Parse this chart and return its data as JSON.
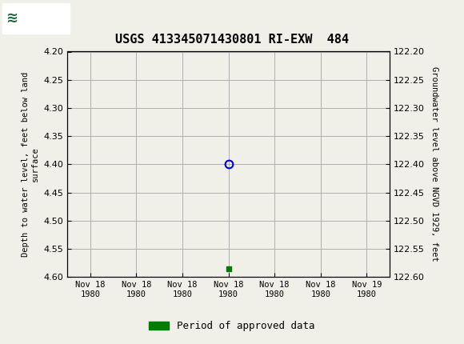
{
  "title": "USGS 413345071430801 RI-EXW  484",
  "ylabel_left": "Depth to water level, feet below land\nsurface",
  "ylabel_right": "Groundwater level above NGVD 1929, feet",
  "ylim_left": [
    4.2,
    4.6
  ],
  "ylim_right": [
    122.2,
    122.6
  ],
  "yticks_left": [
    4.2,
    4.25,
    4.3,
    4.35,
    4.4,
    4.45,
    4.5,
    4.55,
    4.6
  ],
  "yticks_right": [
    122.6,
    122.55,
    122.5,
    122.45,
    122.4,
    122.35,
    122.3,
    122.25,
    122.2
  ],
  "data_point_x": 3.0,
  "data_point_y": 4.4,
  "bar_x": 3.0,
  "bar_y": 4.585,
  "bar_color": "#007d00",
  "circle_color": "#0000cc",
  "header_color": "#1a6b3c",
  "background_color": "#f0f0e8",
  "plot_bg_color": "#f0f0e8",
  "grid_color": "#b0b0b0",
  "font_family": "monospace",
  "legend_label": "Period of approved data",
  "xtick_labels": [
    "Nov 18\n1980",
    "Nov 18\n1980",
    "Nov 18\n1980",
    "Nov 18\n1980",
    "Nov 18\n1980",
    "Nov 18\n1980",
    "Nov 19\n1980"
  ],
  "xtick_positions": [
    0,
    1,
    2,
    3,
    4,
    5,
    6
  ],
  "xlim": [
    -0.5,
    6.5
  ]
}
